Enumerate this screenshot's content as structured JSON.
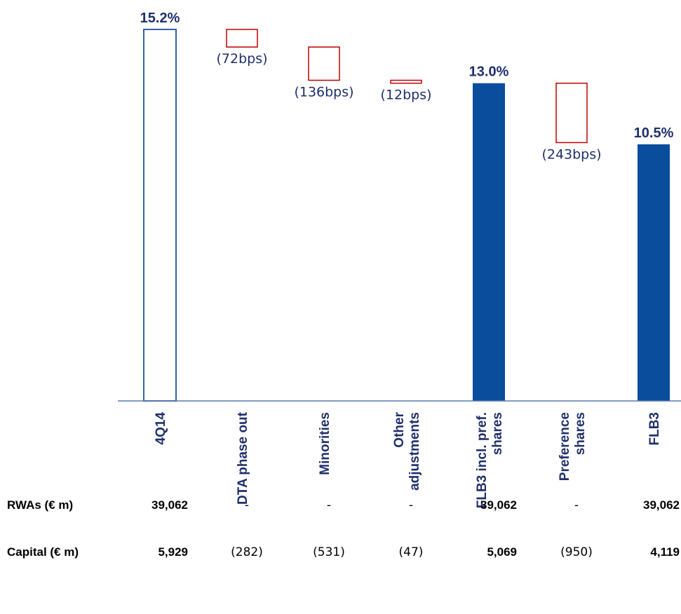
{
  "colors": {
    "primary": "#0a4d9c",
    "decrease": "#c00000",
    "text": "#1f2f6b",
    "axis": "#5a7ab0"
  },
  "chart_data": {
    "type": "bar",
    "subtype": "waterfall",
    "categories": [
      "4Q14",
      "DTA phase out",
      "Minorities",
      "Other adjustments",
      "FLB3 incl. pref. shares",
      "Preference shares",
      "FLB3"
    ],
    "category_lines": [
      [
        "4Q14"
      ],
      [
        "DTA phase out"
      ],
      [
        "Minorities"
      ],
      [
        "Other",
        "adjustments"
      ],
      [
        "FLB3 incl. pref.",
        "shares"
      ],
      [
        "Preference",
        "shares"
      ],
      [
        "FLB3"
      ]
    ],
    "steps": [
      {
        "kind": "total",
        "style": "outline",
        "value": 15.2,
        "label": "15.2%"
      },
      {
        "kind": "delta",
        "value": -0.72,
        "label": "(72bps)"
      },
      {
        "kind": "delta",
        "value": -1.36,
        "label": "(136bps)"
      },
      {
        "kind": "delta",
        "value": -0.12,
        "label": "(12bps)"
      },
      {
        "kind": "total",
        "style": "filled",
        "value": 13.0,
        "label": "13.0%"
      },
      {
        "kind": "delta",
        "value": -2.43,
        "label": "(243bps)"
      },
      {
        "kind": "total",
        "style": "filled",
        "value": 10.5,
        "label": "10.5%"
      }
    ],
    "unit": "%",
    "ylim": [
      0,
      15.2
    ],
    "grid": false
  },
  "table": {
    "rows": [
      {
        "label": "RWAs (€ m)",
        "cells": [
          {
            "text": "39,062",
            "bold": true
          },
          {
            "text": "-",
            "bold": false
          },
          {
            "text": "-",
            "bold": false
          },
          {
            "text": "-",
            "bold": false
          },
          {
            "text": "39,062",
            "bold": true
          },
          {
            "text": "-",
            "bold": false
          },
          {
            "text": "39,062",
            "bold": true
          }
        ]
      },
      {
        "label": "Capital (€ m)",
        "cells": [
          {
            "text": "5,929",
            "bold": true
          },
          {
            "text": "(282)",
            "bold": false
          },
          {
            "text": "(531)",
            "bold": false
          },
          {
            "text": "(47)",
            "bold": false
          },
          {
            "text": "5,069",
            "bold": true
          },
          {
            "text": "(950)",
            "bold": false
          },
          {
            "text": "4,119",
            "bold": true
          }
        ]
      }
    ]
  }
}
